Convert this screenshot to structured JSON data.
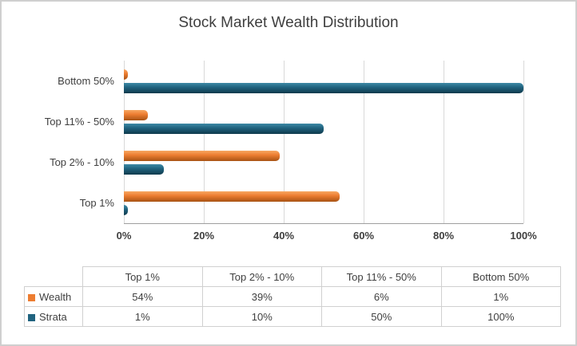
{
  "chart_data": {
    "type": "bar",
    "orientation": "horizontal",
    "title": "Stock Market Wealth Distribution",
    "categories": [
      "Top 1%",
      "Top 2% - 10%",
      "Top 11% - 50%",
      "Bottom 50%"
    ],
    "series": [
      {
        "name": "Wealth",
        "color": "#ED7D31",
        "color_light": "#F7A763",
        "color_dark": "#A85314",
        "values": [
          54,
          39,
          6,
          1
        ]
      },
      {
        "name": "Strata",
        "color": "#20637F",
        "color_light": "#3E89A6",
        "color_dark": "#0F3A4C",
        "values": [
          1,
          10,
          50,
          100
        ]
      }
    ],
    "x_ticks": [
      {
        "value": 0,
        "label": "0%"
      },
      {
        "value": 20,
        "label": "20%"
      },
      {
        "value": 40,
        "label": "40%"
      },
      {
        "value": 60,
        "label": "60%"
      },
      {
        "value": 80,
        "label": "80%"
      },
      {
        "value": 100,
        "label": "100%"
      }
    ],
    "xlim": [
      0,
      100
    ],
    "gridlines": true,
    "legend_position": "data-table",
    "value_suffix": "%"
  },
  "table": {
    "header": [
      "",
      "Top 1%",
      "Top 2% - 10%",
      "Top 11% - 50%",
      "Bottom 50%"
    ],
    "rows": [
      {
        "label": "Wealth",
        "color": "#ED7D31",
        "values": [
          "54%",
          "39%",
          "6%",
          "1%"
        ]
      },
      {
        "label": "Strata",
        "color": "#20637F",
        "values": [
          "1%",
          "10%",
          "50%",
          "100%"
        ]
      }
    ]
  }
}
